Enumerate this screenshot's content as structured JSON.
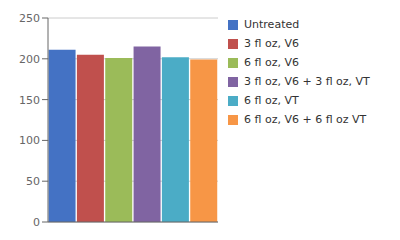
{
  "chart_data": {
    "type": "bar",
    "categories": [
      "Untreated",
      "3 fl oz, V6",
      "6 fl oz, V6",
      "3 fl oz, V6 + 3 fl oz, VT",
      "6 fl oz, VT",
      "6 fl oz, V6 + 6 fl oz VT"
    ],
    "values": [
      211,
      205,
      201,
      215,
      202,
      199
    ],
    "colors": [
      "#4472C4",
      "#C0504D",
      "#9BBB59",
      "#8064A2",
      "#4BACC6",
      "#F79646"
    ],
    "ylim": [
      0,
      250
    ],
    "yticks": [
      0,
      50,
      100,
      150,
      200,
      250
    ],
    "grid": true,
    "legend": "right",
    "tick_labels": "y"
  }
}
